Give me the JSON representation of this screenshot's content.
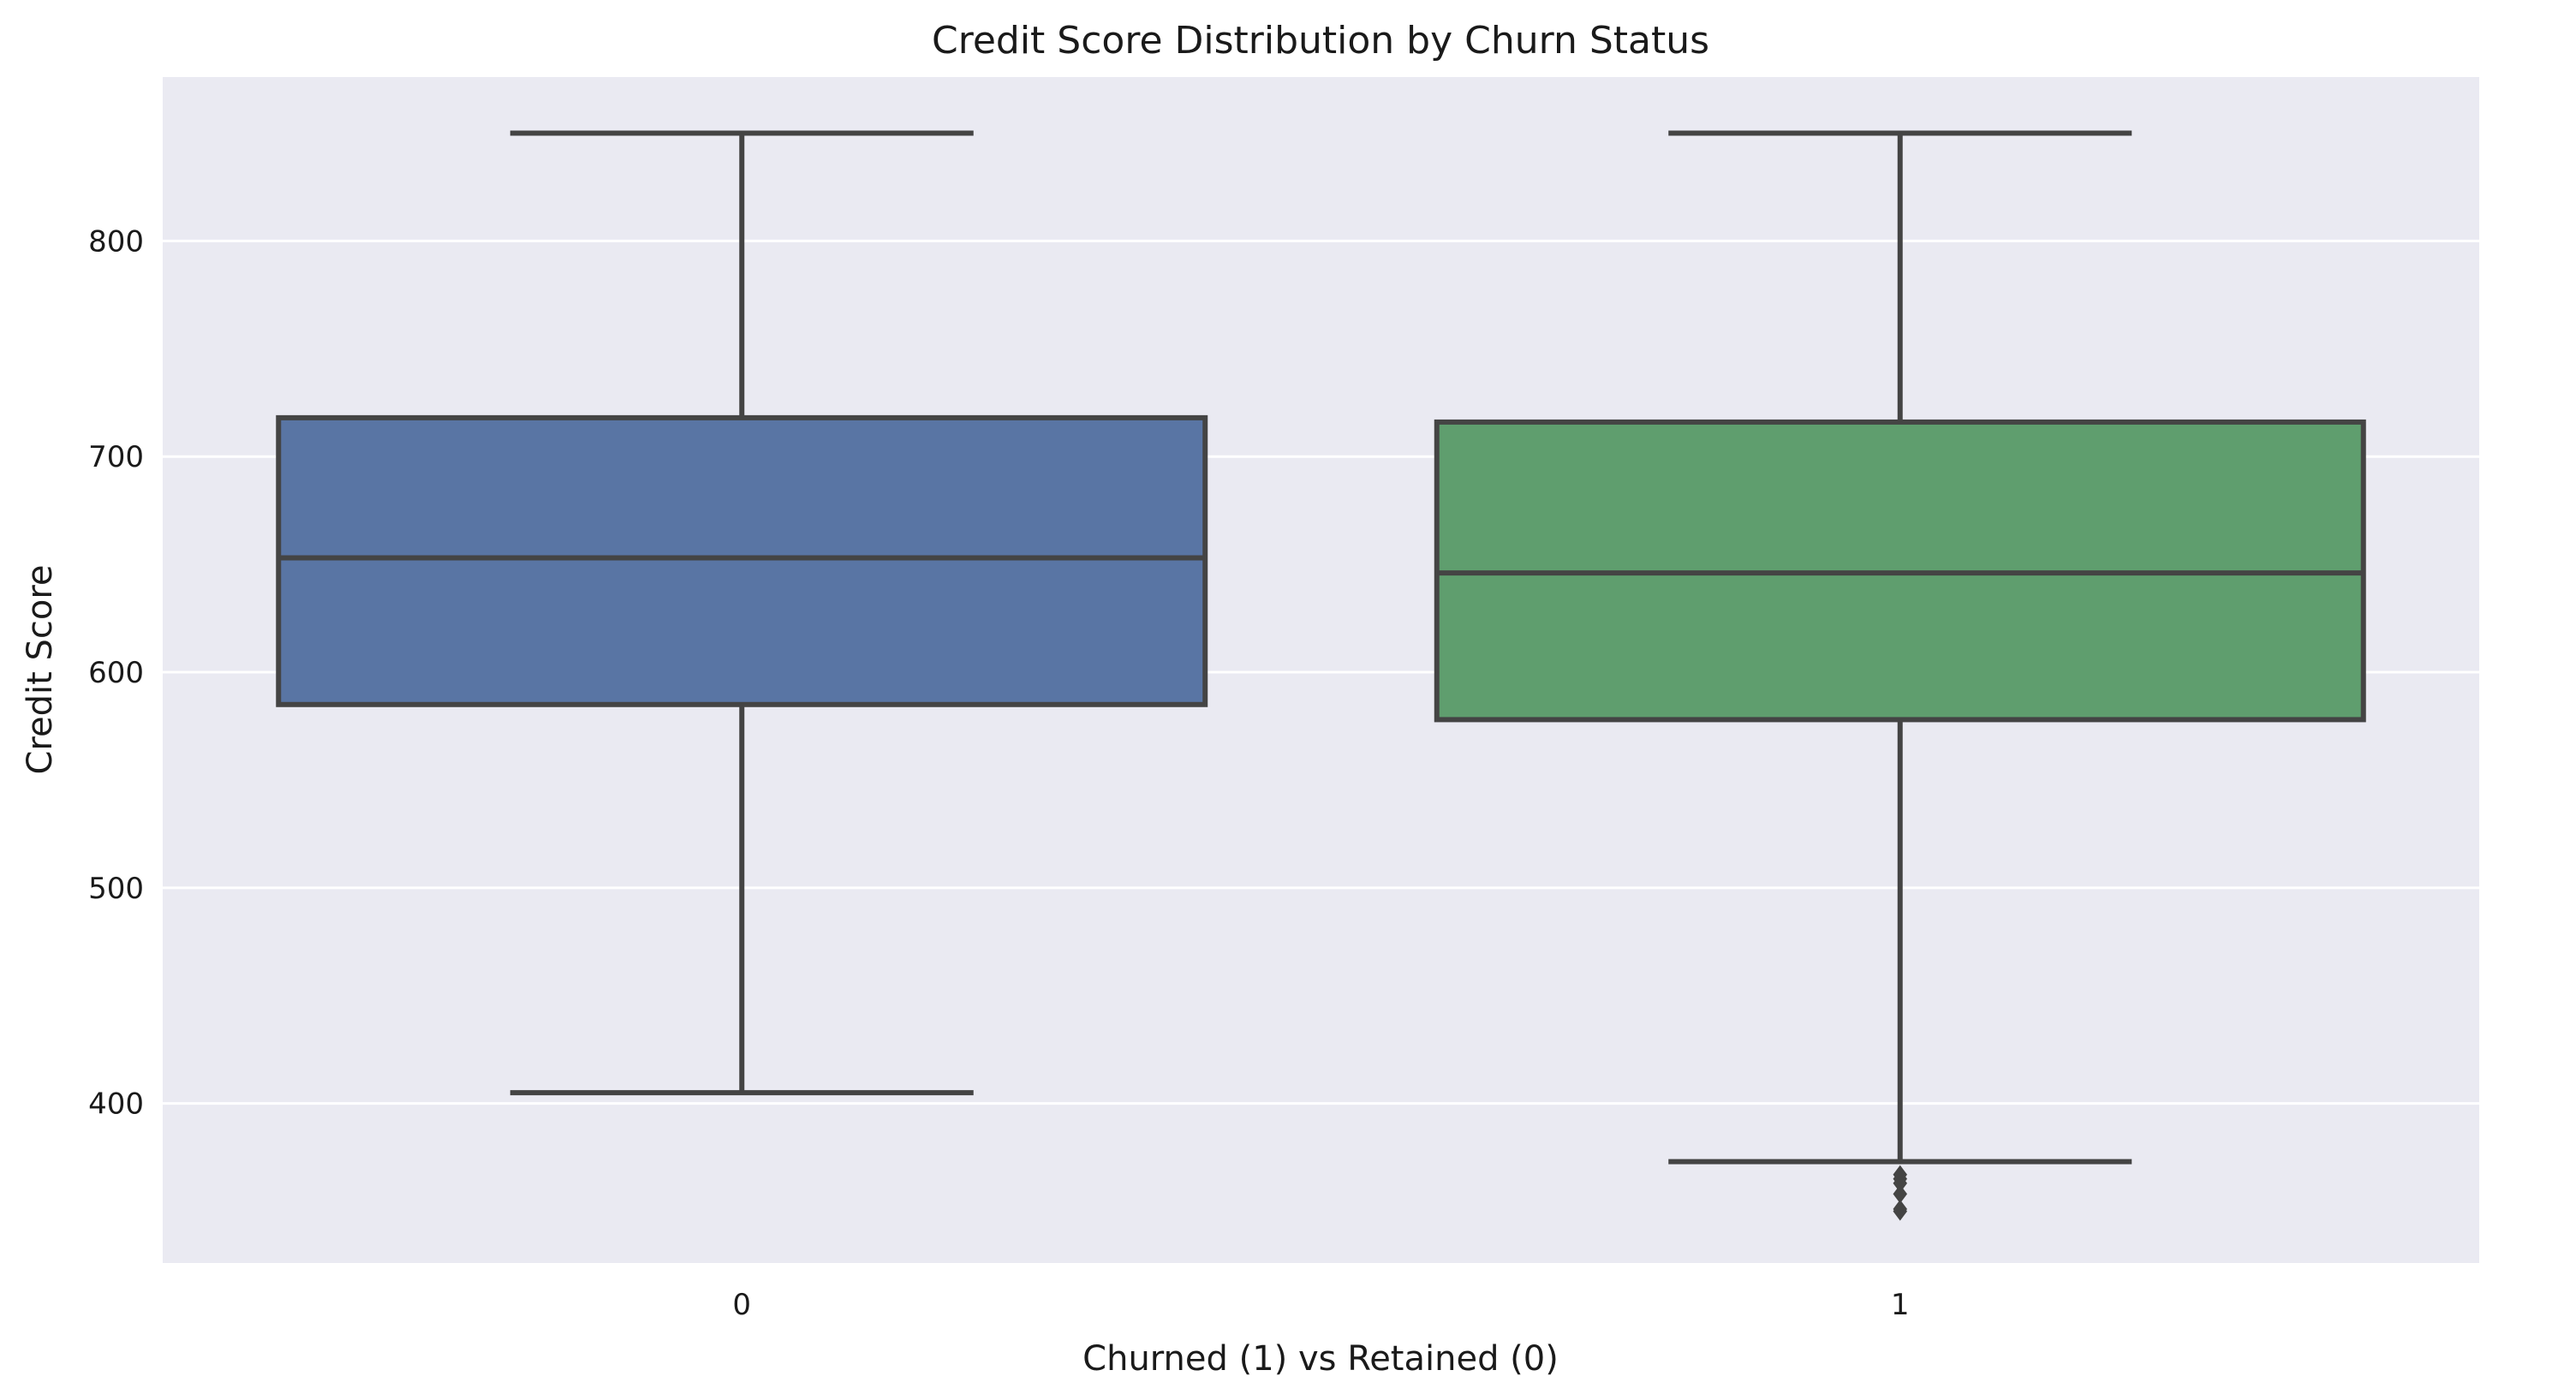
{
  "chart_data": {
    "type": "box",
    "title": "Credit Score Distribution by Churn Status",
    "xlabel": "Churned (1) vs Retained (0)",
    "ylabel": "Credit Score",
    "categories": [
      "0",
      "1"
    ],
    "yticks": [
      400,
      500,
      600,
      700,
      800
    ],
    "ylim": [
      326,
      876
    ],
    "grid": true,
    "boxes": [
      {
        "category": "0",
        "whisker_low": 405,
        "q1": 585,
        "median": 653,
        "q3": 718,
        "whisker_high": 850,
        "outliers": [],
        "color": "#5975a4"
      },
      {
        "category": "1",
        "whisker_low": 373,
        "q1": 578,
        "median": 646,
        "q3": 716,
        "whisker_high": 850,
        "outliers": [
          350,
          351,
          358,
          363,
          365,
          367
        ],
        "color": "#5f9e6e"
      }
    ],
    "colors": {
      "plot_background": "#eaeaf2",
      "grid": "#ffffff",
      "line": "#444444"
    }
  }
}
